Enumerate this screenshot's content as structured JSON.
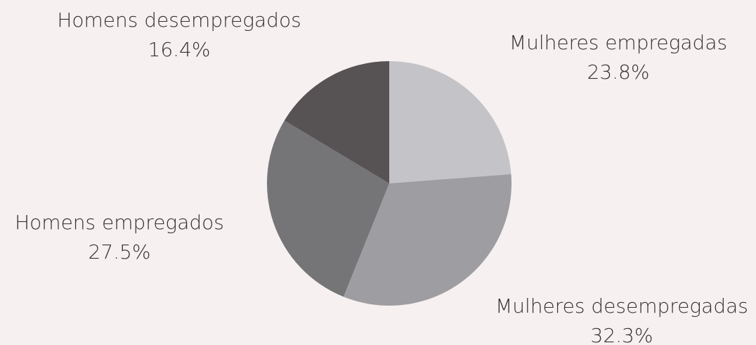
{
  "chart_data": {
    "type": "pie",
    "categories": [
      "Mulheres empregadas",
      "Mulheres desempregadas",
      "Homens empregados",
      "Homens desempregados"
    ],
    "values": [
      23.8,
      32.3,
      27.5,
      16.4
    ],
    "value_labels": [
      "23.8%",
      "32.3%",
      "27.5%",
      "16.4%"
    ],
    "colors": [
      "#c4c4c8",
      "#9e9da1",
      "#757477",
      "#575354"
    ]
  }
}
